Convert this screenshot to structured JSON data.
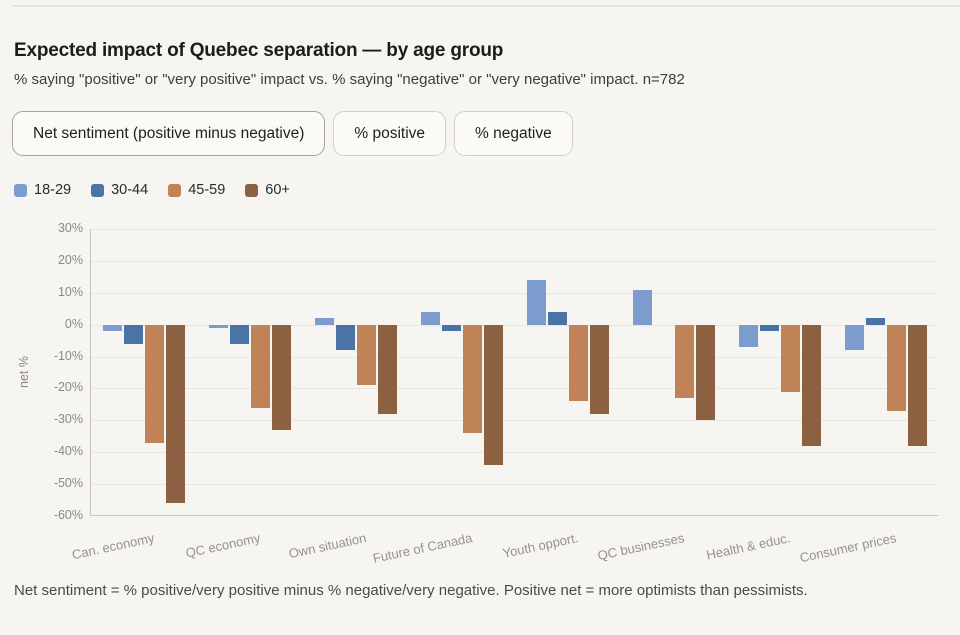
{
  "page": {
    "title": "Expected impact of Quebec separation — by age group",
    "subtitle": "% saying \"positive\" or \"very positive\" impact vs. % saying \"negative\" or \"very negative\" impact. n=782",
    "footnote": "Net sentiment = % positive/very positive minus % negative/very negative. Positive net = more optimists than pessimists."
  },
  "toolbar": {
    "buttons": [
      {
        "label": "Net sentiment (positive minus negative)",
        "active": true
      },
      {
        "label": "% positive",
        "active": false
      },
      {
        "label": "% negative",
        "active": false
      }
    ]
  },
  "chart_data": {
    "type": "bar",
    "title": "Expected impact of Quebec separation — by age group",
    "ylabel": "net %",
    "ylim": [
      -60,
      30
    ],
    "ytick_step": 10,
    "ytick_labels": [
      "30%",
      "20%",
      "10%",
      "0%",
      "-10%",
      "-20%",
      "-30%",
      "-40%",
      "-50%",
      "-60%"
    ],
    "grid": true,
    "legend_position": "top",
    "categories": [
      "Can. economy",
      "QC economy",
      "Own situation",
      "Future of Canada",
      "Youth opport.",
      "QC businesses",
      "Health & educ.",
      "Consumer prices"
    ],
    "series": [
      {
        "name": "18-29",
        "color": "#7d9cce",
        "values": [
          -2,
          -1,
          2,
          4,
          14,
          11,
          -7,
          -8
        ]
      },
      {
        "name": "30-44",
        "color": "#4a74a6",
        "values": [
          -6,
          -6,
          -8,
          -2,
          4,
          0,
          -2,
          2
        ]
      },
      {
        "name": "45-59",
        "color": "#c08257",
        "values": [
          -37,
          -26,
          -19,
          -34,
          -24,
          -23,
          -21,
          -27
        ]
      },
      {
        "name": "60+",
        "color": "#8c6142",
        "values": [
          -56,
          -33,
          -28,
          -44,
          -28,
          -30,
          -38,
          -38
        ]
      }
    ]
  }
}
